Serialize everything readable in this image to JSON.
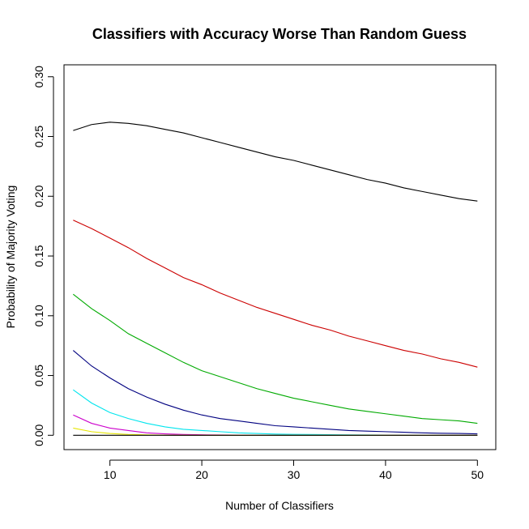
{
  "chart_data": {
    "type": "line",
    "title": "Classifiers with Accuracy Worse Than Random Guess",
    "xlabel": "Number of Classifiers",
    "ylabel": "Probability of Majority Voting",
    "xlim": [
      5,
      52
    ],
    "ylim": [
      -0.012,
      0.31
    ],
    "x_ticks": [
      "10",
      "20",
      "30",
      "40",
      "50"
    ],
    "y_ticks": [
      "0.00",
      "0.05",
      "0.10",
      "0.15",
      "0.20",
      "0.25",
      "0.30"
    ],
    "grid": false,
    "legend": "none",
    "series": [
      {
        "color": "#000000",
        "points": [
          [
            6,
            0.255
          ],
          [
            8,
            0.26
          ],
          [
            10,
            0.262
          ],
          [
            12,
            0.261
          ],
          [
            14,
            0.259
          ],
          [
            16,
            0.256
          ],
          [
            18,
            0.253
          ],
          [
            20,
            0.249
          ],
          [
            22,
            0.245
          ],
          [
            24,
            0.241
          ],
          [
            26,
            0.237
          ],
          [
            28,
            0.233
          ],
          [
            30,
            0.23
          ],
          [
            32,
            0.226
          ],
          [
            34,
            0.222
          ],
          [
            36,
            0.218
          ],
          [
            38,
            0.214
          ],
          [
            40,
            0.211
          ],
          [
            42,
            0.207
          ],
          [
            44,
            0.204
          ],
          [
            46,
            0.201
          ],
          [
            48,
            0.198
          ],
          [
            50,
            0.196
          ]
        ]
      },
      {
        "color": "#cc0000",
        "points": [
          [
            6,
            0.18
          ],
          [
            8,
            0.173
          ],
          [
            10,
            0.165
          ],
          [
            12,
            0.157
          ],
          [
            14,
            0.148
          ],
          [
            16,
            0.14
          ],
          [
            18,
            0.132
          ],
          [
            20,
            0.126
          ],
          [
            22,
            0.119
          ],
          [
            24,
            0.113
          ],
          [
            26,
            0.107
          ],
          [
            28,
            0.102
          ],
          [
            30,
            0.097
          ],
          [
            32,
            0.092
          ],
          [
            34,
            0.088
          ],
          [
            36,
            0.083
          ],
          [
            38,
            0.079
          ],
          [
            40,
            0.075
          ],
          [
            42,
            0.071
          ],
          [
            44,
            0.068
          ],
          [
            46,
            0.064
          ],
          [
            48,
            0.061
          ],
          [
            50,
            0.057
          ]
        ]
      },
      {
        "color": "#00aa00",
        "points": [
          [
            6,
            0.118
          ],
          [
            8,
            0.106
          ],
          [
            10,
            0.096
          ],
          [
            12,
            0.085
          ],
          [
            14,
            0.077
          ],
          [
            16,
            0.069
          ],
          [
            18,
            0.061
          ],
          [
            20,
            0.054
          ],
          [
            22,
            0.049
          ],
          [
            24,
            0.044
          ],
          [
            26,
            0.039
          ],
          [
            28,
            0.035
          ],
          [
            30,
            0.031
          ],
          [
            32,
            0.028
          ],
          [
            34,
            0.025
          ],
          [
            36,
            0.022
          ],
          [
            38,
            0.02
          ],
          [
            40,
            0.018
          ],
          [
            42,
            0.016
          ],
          [
            44,
            0.014
          ],
          [
            46,
            0.013
          ],
          [
            48,
            0.012
          ],
          [
            50,
            0.01
          ]
        ]
      },
      {
        "color": "#000080",
        "points": [
          [
            6,
            0.071
          ],
          [
            8,
            0.058
          ],
          [
            10,
            0.048
          ],
          [
            12,
            0.039
          ],
          [
            14,
            0.032
          ],
          [
            16,
            0.026
          ],
          [
            18,
            0.021
          ],
          [
            20,
            0.017
          ],
          [
            22,
            0.014
          ],
          [
            24,
            0.012
          ],
          [
            26,
            0.01
          ],
          [
            28,
            0.008
          ],
          [
            30,
            0.007
          ],
          [
            32,
            0.006
          ],
          [
            34,
            0.005
          ],
          [
            36,
            0.004
          ],
          [
            38,
            0.0035
          ],
          [
            40,
            0.003
          ],
          [
            42,
            0.0025
          ],
          [
            44,
            0.002
          ],
          [
            46,
            0.0017
          ],
          [
            48,
            0.0015
          ],
          [
            50,
            0.0012
          ]
        ]
      },
      {
        "color": "#00e5ee",
        "points": [
          [
            6,
            0.038
          ],
          [
            8,
            0.027
          ],
          [
            10,
            0.019
          ],
          [
            12,
            0.014
          ],
          [
            14,
            0.01
          ],
          [
            16,
            0.007
          ],
          [
            18,
            0.005
          ],
          [
            20,
            0.004
          ],
          [
            22,
            0.003
          ],
          [
            24,
            0.002
          ],
          [
            26,
            0.0015
          ],
          [
            28,
            0.001
          ],
          [
            30,
            0.0008
          ],
          [
            35,
            0.0004
          ],
          [
            40,
            0.0002
          ],
          [
            45,
            0.0001
          ],
          [
            50,
            0.0
          ]
        ]
      },
      {
        "color": "#cc00cc",
        "points": [
          [
            6,
            0.017
          ],
          [
            8,
            0.01
          ],
          [
            10,
            0.006
          ],
          [
            12,
            0.004
          ],
          [
            14,
            0.002
          ],
          [
            16,
            0.0012
          ],
          [
            18,
            0.0007
          ],
          [
            20,
            0.0004
          ],
          [
            25,
            0.0001
          ],
          [
            30,
            0.0
          ],
          [
            50,
            0.0
          ]
        ]
      },
      {
        "color": "#e6e600",
        "points": [
          [
            6,
            0.006
          ],
          [
            8,
            0.003
          ],
          [
            10,
            0.0015
          ],
          [
            12,
            0.0007
          ],
          [
            14,
            0.0003
          ],
          [
            16,
            0.0001
          ],
          [
            20,
            0.0
          ],
          [
            50,
            0.0
          ]
        ]
      },
      {
        "color": "#000000",
        "points": [
          [
            6,
            0.0
          ],
          [
            50,
            0.0
          ]
        ]
      }
    ]
  }
}
